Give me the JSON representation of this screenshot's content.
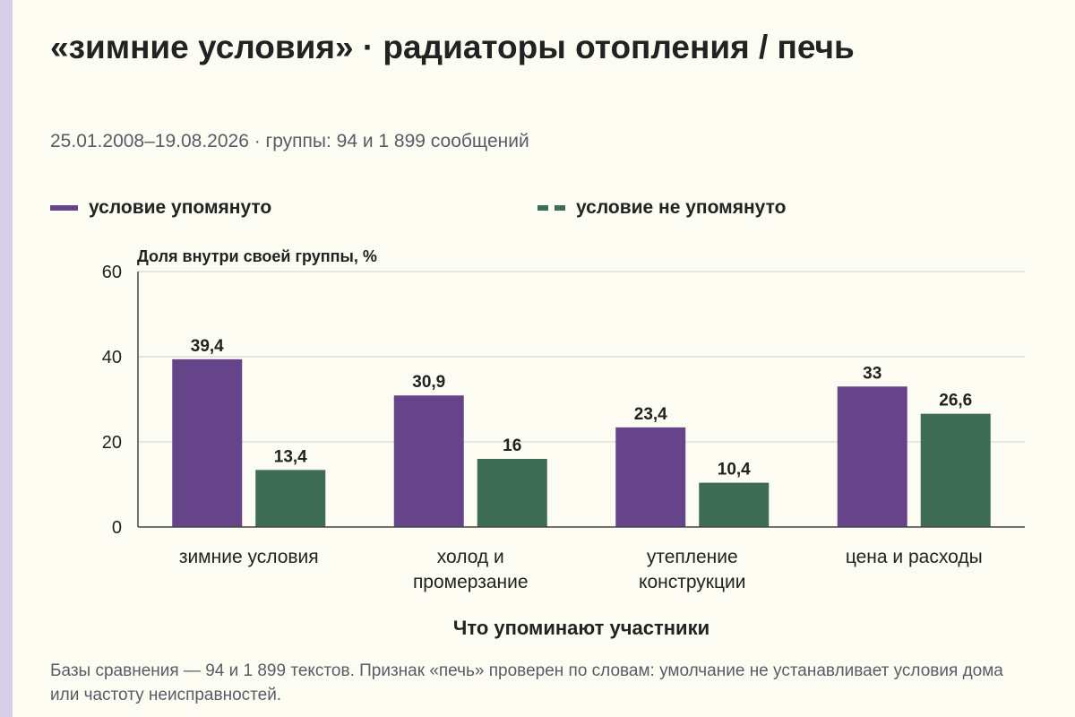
{
  "title": "«зимние условия» · радиаторы отопления / печь",
  "subtitle": "25.01.2008–19.08.2026 · группы: 94 и 1 899 сообщений",
  "legend": [
    {
      "label": "условие упомянуто",
      "color": "#66448a",
      "style": "solid"
    },
    {
      "label": "условие не упомянуто",
      "color": "#3e6b55",
      "style": "dashed"
    }
  ],
  "note": "Базы сравнения — 94 и 1 899 текстов. Признак «печь» проверен по словам: умолчание не устанавливает условия дома или частоту неисправностей.",
  "chart_data": {
    "type": "bar",
    "ylabel": "Доля внутри своей группы, %",
    "xlabel": "Что упоминают участники",
    "ylim": [
      0,
      60
    ],
    "yticks": [
      0,
      20,
      40,
      60
    ],
    "grid": true,
    "legend_position": "top-left",
    "categories": [
      [
        "зимние условия"
      ],
      [
        "холод и",
        "промерзание"
      ],
      [
        "утепление",
        "конструкции"
      ],
      [
        "цена и расходы"
      ]
    ],
    "series": [
      {
        "name": "условие упомянуто",
        "color": "#66448a",
        "values": [
          39.4,
          30.9,
          23.4,
          33
        ],
        "labels": [
          "39,4",
          "30,9",
          "23,4",
          "33"
        ]
      },
      {
        "name": "условие не упомянуто",
        "color": "#3e6b55",
        "values": [
          13.4,
          16,
          10.4,
          26.6
        ],
        "labels": [
          "13,4",
          "16",
          "10,4",
          "26,6"
        ]
      }
    ]
  }
}
